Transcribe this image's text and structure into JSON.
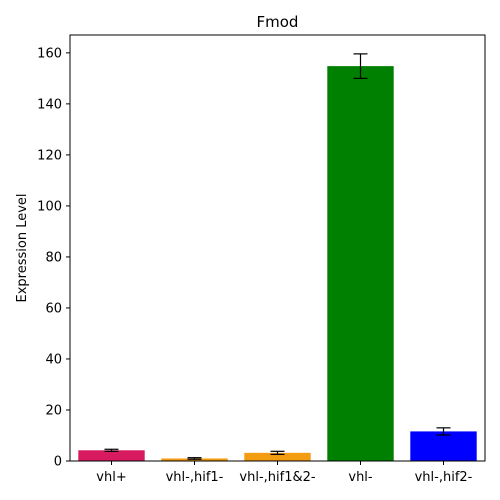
{
  "chart_data": {
    "type": "bar",
    "title": "Fmod",
    "xlabel": "",
    "ylabel": "Expression Level",
    "categories": [
      "vhl+",
      "vhl-,hif1-",
      "vhl-,hif1&2-",
      "vhl-",
      "vhl-,hif2-"
    ],
    "values": [
      4.2,
      1.0,
      3.2,
      154.8,
      11.6
    ],
    "errors": [
      0.4,
      0.3,
      0.6,
      4.8,
      1.4
    ],
    "colors": [
      "#d81b60",
      "#f39c12",
      "#f39c12",
      "#008000",
      "#0000ff"
    ],
    "ylim": [
      0,
      167
    ],
    "yticks": [
      0,
      20,
      40,
      60,
      80,
      100,
      120,
      140,
      160
    ],
    "grid": false,
    "legend": "none"
  }
}
